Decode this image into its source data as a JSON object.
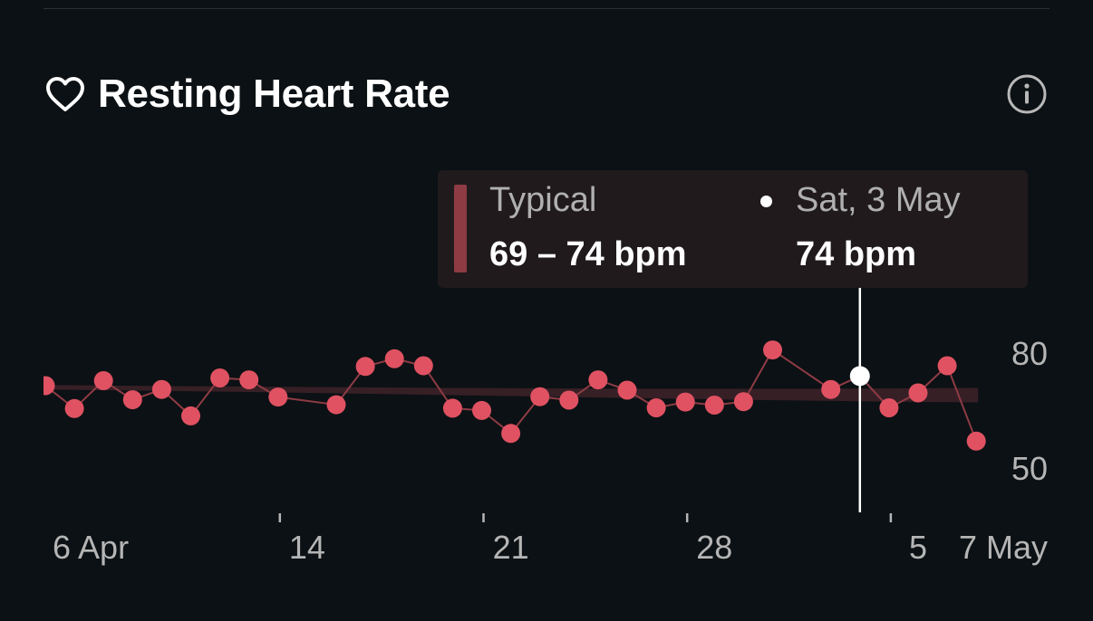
{
  "header": {
    "title": "Resting Heart Rate",
    "icon": "heart-outline-icon",
    "info_icon": "info-icon"
  },
  "tooltip": {
    "typical_label": "Typical",
    "typical_value": "69 – 74 bpm",
    "date_label": "Sat, 3 May",
    "date_value": "74 bpm"
  },
  "colors": {
    "background": "#0b1114",
    "point": "#e05262",
    "line": "#8e3b44",
    "band": "#3a2127",
    "tooltip_bg": "#201a1c",
    "cursor": "#ffffff"
  },
  "chart_data": {
    "type": "line",
    "x": [
      "2025-04-05",
      "2025-04-06",
      "2025-04-07",
      "2025-04-08",
      "2025-04-09",
      "2025-04-10",
      "2025-04-11",
      "2025-04-12",
      "2025-04-13",
      "2025-04-15",
      "2025-04-16",
      "2025-04-17",
      "2025-04-18",
      "2025-04-19",
      "2025-04-20",
      "2025-04-21",
      "2025-04-22",
      "2025-04-23",
      "2025-04-24",
      "2025-04-25",
      "2025-04-26",
      "2025-04-27",
      "2025-04-28",
      "2025-04-29",
      "2025-04-30",
      "2025-05-02",
      "2025-05-03",
      "2025-05-04",
      "2025-05-05",
      "2025-05-06",
      "2025-05-07"
    ],
    "series": [
      {
        "values": [
          71.5,
          65.5,
          72.8,
          67.8,
          70.5,
          63.6,
          73.5,
          73.0,
          68.5,
          66.5,
          76.5,
          78.5,
          76.7,
          65.6,
          65.0,
          59.0,
          68.6,
          67.7,
          73.0,
          70.3,
          65.7,
          67.2,
          66.4,
          67.3,
          80.8,
          70.5,
          74.0,
          65.7,
          69.6,
          76.7,
          57.0
        ]
      }
    ],
    "typical_band": {
      "lower": 69,
      "upper": 74
    },
    "selected": {
      "date": "2025-05-03",
      "value": 74
    },
    "y_ticks": [
      80,
      50
    ],
    "x_tick_labels": [
      {
        "date": "2025-04-06",
        "label": "6 Apr"
      },
      {
        "date": "2025-04-14",
        "label": "14"
      },
      {
        "date": "2025-04-21",
        "label": "21"
      },
      {
        "date": "2025-04-28",
        "label": "28"
      },
      {
        "date": "2025-05-05",
        "label": "5"
      },
      {
        "date": "2025-05-07",
        "label": "7 May"
      }
    ],
    "tick_marks": [
      "2025-04-13",
      "2025-04-20",
      "2025-04-27",
      "2025-05-04"
    ],
    "x_range": [
      "2025-04-05",
      "2025-05-07"
    ],
    "ylim": [
      50,
      80
    ]
  }
}
